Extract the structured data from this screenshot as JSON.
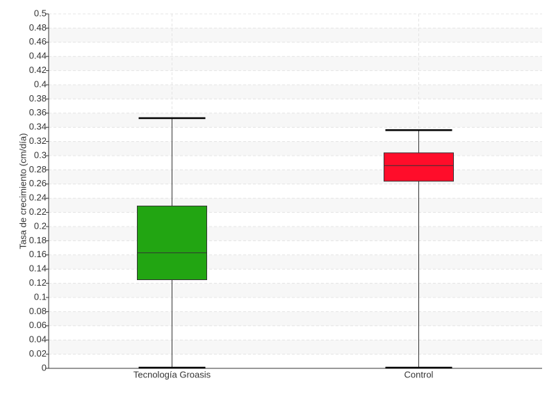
{
  "chart_data": {
    "type": "box",
    "y_label": "Tasa de crecimiento (cm/día)",
    "categories": [
      "Tecnología Groasis",
      "Control"
    ],
    "boxes": [
      {
        "min": 0,
        "q1": 0.125,
        "median": 0.163,
        "q3": 0.229,
        "max": 0.353,
        "color": "#22a512"
      },
      {
        "min": 0,
        "q1": 0.264,
        "median": 0.286,
        "q3": 0.304,
        "max": 0.336,
        "color": "#ff0d2a"
      }
    ],
    "ylim": [
      0,
      0.5
    ],
    "yticks": [
      0,
      0.02,
      0.04,
      0.06,
      0.08,
      0.1,
      0.12,
      0.14,
      0.16,
      0.18,
      0.2,
      0.22,
      0.24,
      0.26,
      0.28,
      0.3,
      0.32,
      0.34,
      0.36,
      0.38,
      0.4,
      0.42,
      0.44,
      0.46,
      0.48,
      0.5
    ],
    "grid": true
  }
}
